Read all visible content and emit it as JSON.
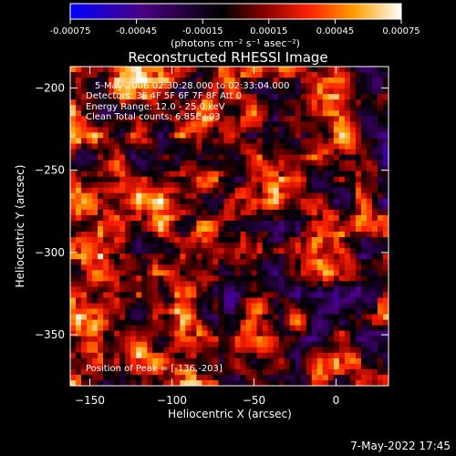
{
  "colorbar": {
    "tick_labels": [
      "-0.00075",
      "-0.00045",
      "-0.00015",
      "0.00015",
      "0.00045",
      "0.00075"
    ],
    "tick_values": [
      -0.00075,
      -0.00045,
      -0.00015,
      0.00015,
      0.00045,
      0.00075
    ],
    "range": [
      -0.00075,
      0.00075
    ],
    "units_label": "(photons cm⁻² s⁻¹ asec⁻²)",
    "colors": [
      "#0000ff",
      "#4b0082",
      "#000000",
      "#800000",
      "#ff2000",
      "#ffa000",
      "#ffffff"
    ]
  },
  "chart_data": {
    "type": "heatmap",
    "title": "Reconstructed RHESSI Image",
    "xlabel": "Heliocentric X (arcsec)",
    "ylabel": "Heliocentric Y (arcsec)",
    "xlim": [
      -162,
      32
    ],
    "ylim": [
      -381,
      -187
    ],
    "x_ticks": [
      -150,
      -100,
      -50,
      0
    ],
    "x_tick_labels": [
      "−150",
      "−100",
      "−50",
      "0"
    ],
    "y_ticks": [
      -200,
      -250,
      -300,
      -350
    ],
    "y_tick_labels": [
      "−200",
      "−250",
      "−300",
      "−350"
    ],
    "annotations": [
      "5-May-2006 02:30:28.000 to 02:33:04.000",
      "Detectors: 3F 4F 5F 6F 7F 8F  Att 0",
      "Energy Range: 12.0 - 25.0 keV",
      "Clean    Total counts: 6.85E+03"
    ],
    "peak_label": "Position of Peak = [-136,-203]",
    "peak_position": [
      -136,
      -203
    ]
  },
  "footer": {
    "timestamp": "7-May-2022 17:45"
  }
}
